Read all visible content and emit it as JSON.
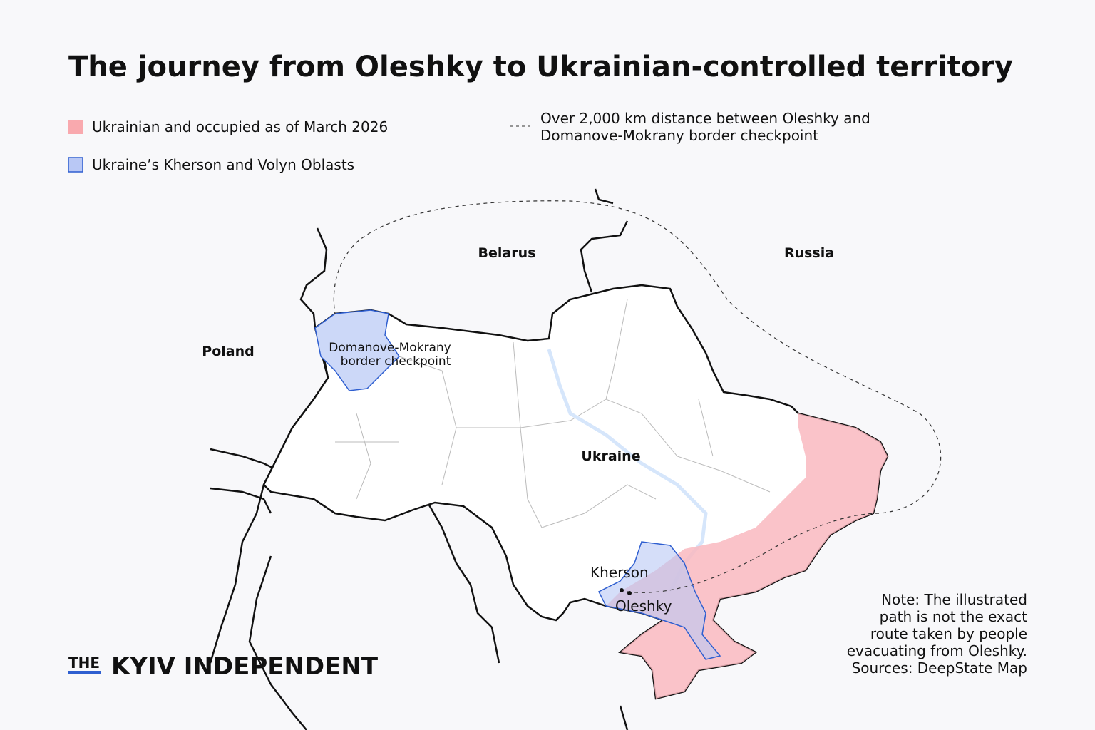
{
  "header": {
    "title": "The journey from Oleshky to Ukrainian-controlled territory"
  },
  "legend": {
    "items": [
      {
        "label": "Ukrainian and occupied as of March 2026"
      },
      {
        "label": "Ukraine’s Kherson and Volyn Oblasts"
      }
    ],
    "route": {
      "lines": [
        "Over 2,000 km distance between Oleshky and",
        "Domanove-Mokrany border checkpoint"
      ]
    }
  },
  "map": {
    "countries": [
      "Belarus",
      "Russia",
      "Poland",
      "Ukraine"
    ],
    "checkpoint": {
      "lines": [
        "Domanove-Mokrany",
        "border checkpoint"
      ]
    },
    "cities": [
      "Kherson",
      "Oleshky"
    ]
  },
  "note": {
    "lines": [
      "Note: The illustrated",
      "path is not the exact",
      "route taken by people",
      "evacuating from Oleshky.",
      "Sources: DeepState Map"
    ]
  },
  "logo": {
    "prefix": "THE",
    "name": "KYIV INDEPENDENT"
  }
}
